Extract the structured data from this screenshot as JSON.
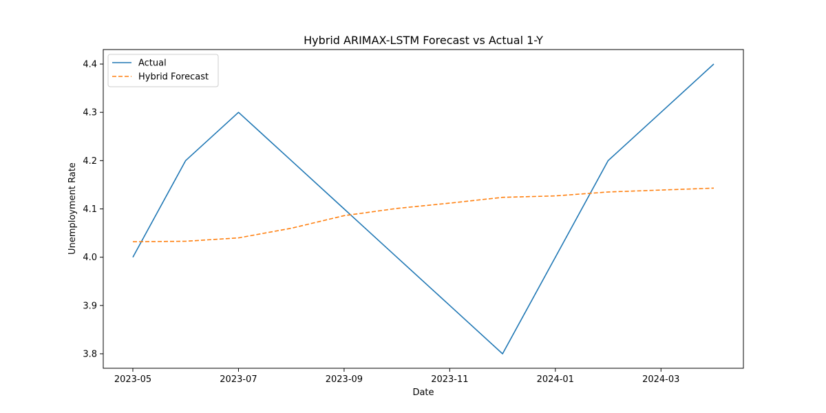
{
  "chart_data": {
    "type": "line",
    "title": "Hybrid ARIMAX-LSTM Forecast vs Actual 1-Y",
    "xlabel": "Date",
    "ylabel": "Unemployment Rate",
    "x": [
      "2023-05",
      "2023-06",
      "2023-07",
      "2023-08",
      "2023-09",
      "2023-10",
      "2023-11",
      "2023-12",
      "2024-01",
      "2024-02",
      "2024-03",
      "2024-04"
    ],
    "x_ticks": [
      "2023-05",
      "2023-07",
      "2023-09",
      "2023-11",
      "2024-01",
      "2024-03"
    ],
    "y_ticks": [
      "3.8",
      "3.9",
      "4.0",
      "4.1",
      "4.2",
      "4.3",
      "4.4"
    ],
    "ylim": [
      3.77,
      4.43
    ],
    "grid": false,
    "legend_position": "top-left",
    "series": [
      {
        "name": "Actual",
        "color": "#1f77b4",
        "style": "solid",
        "values": [
          4.0,
          4.2,
          4.3,
          4.2,
          4.1,
          4.0,
          3.9,
          3.8,
          4.0,
          4.2,
          4.3,
          4.4
        ]
      },
      {
        "name": "Hybrid Forecast",
        "color": "#ff7f0e",
        "style": "dashed",
        "values": [
          4.032,
          4.033,
          4.04,
          4.06,
          4.086,
          4.101,
          4.112,
          4.124,
          4.127,
          4.135,
          4.139,
          4.143
        ]
      }
    ]
  }
}
